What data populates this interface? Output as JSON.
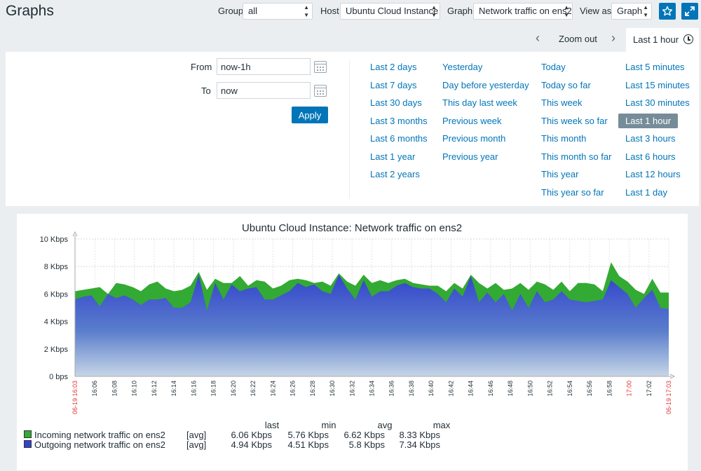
{
  "page": {
    "title": "Graphs"
  },
  "filters": {
    "group_label": "Group",
    "group_value": "all",
    "host_label": "Host",
    "host_value": "Ubuntu Cloud Instance",
    "graph_label": "Graph",
    "graph_value": "Network traffic on ens2",
    "view_label": "View as",
    "view_value": "Graph"
  },
  "header_icons": [
    "star-icon",
    "fullscreen-icon"
  ],
  "time_nav": {
    "prev": "‹",
    "zoom_out": "Zoom out",
    "next": "›",
    "active_tab": "Last 1 hour"
  },
  "time_filter": {
    "from_label": "From",
    "from_value": "now-1h",
    "to_label": "To",
    "to_value": "now",
    "apply_label": "Apply",
    "quick_ranges": [
      [
        "Last 2 days",
        "Last 7 days",
        "Last 30 days",
        "Last 3 months",
        "Last 6 months",
        "Last 1 year",
        "Last 2 years"
      ],
      [
        "Yesterday",
        "Day before yesterday",
        "This day last week",
        "Previous week",
        "Previous month",
        "Previous year"
      ],
      [
        "Today",
        "Today so far",
        "This week",
        "This week so far",
        "This month",
        "This month so far",
        "This year",
        "This year so far"
      ],
      [
        "Last 5 minutes",
        "Last 15 minutes",
        "Last 30 minutes",
        "Last 1 hour",
        "Last 3 hours",
        "Last 6 hours",
        "Last 12 hours",
        "Last 1 day"
      ]
    ],
    "active_range": "Last 1 hour"
  },
  "chart_data": {
    "type": "area",
    "title": "Ubuntu Cloud Instance: Network traffic on ens2",
    "ylim": [
      0,
      10
    ],
    "y_ticks": [
      "0 bps",
      "2 Kbps",
      "4 Kbps",
      "6 Kbps",
      "8 Kbps",
      "10 Kbps"
    ],
    "x_ticks": [
      "06-19 16:03",
      "16:06",
      "16:08",
      "16:10",
      "16:12",
      "16:14",
      "16:16",
      "16:18",
      "16:20",
      "16:22",
      "16:24",
      "16:26",
      "16:28",
      "16:30",
      "16:32",
      "16:34",
      "16:36",
      "16:38",
      "16:40",
      "16:42",
      "16:44",
      "16:46",
      "16:48",
      "16:50",
      "16:52",
      "16:54",
      "16:56",
      "16:58",
      "17:00",
      "17:02",
      "06-19 17:03"
    ],
    "x_ticks_red": [
      "06-19 16:03",
      "17:00",
      "06-19 17:03"
    ],
    "grid": true,
    "series": [
      {
        "name": "Incoming network traffic on ens2",
        "color": "#33aa33",
        "values": [
          6.2,
          6.3,
          6.4,
          6.5,
          6.0,
          6.8,
          6.7,
          6.5,
          6.2,
          6.7,
          6.9,
          6.4,
          6.2,
          6.3,
          6.6,
          7.6,
          6.3,
          7.1,
          6.8,
          6.8,
          7.3,
          6.6,
          7.0,
          6.9,
          6.4,
          6.6,
          7.0,
          7.1,
          7.0,
          6.8,
          6.9,
          6.6,
          7.5,
          6.9,
          6.6,
          7.4,
          6.8,
          7.0,
          6.8,
          7.0,
          7.1,
          6.8,
          6.7,
          6.6,
          6.6,
          6.2,
          6.8,
          6.4,
          7.4,
          6.8,
          6.4,
          6.8,
          6.3,
          6.4,
          6.8,
          6.3,
          6.9,
          6.7,
          6.3,
          6.9,
          6.2,
          6.8,
          6.8,
          6.7,
          6.2,
          8.3,
          7.3,
          6.9,
          6.3,
          6.0,
          7.1,
          6.1,
          6.1
        ]
      },
      {
        "name": "Outgoing network traffic on ens2",
        "color": "#3344cc",
        "values": [
          5.6,
          5.8,
          5.9,
          5.1,
          6.0,
          5.7,
          5.9,
          5.6,
          5.2,
          5.6,
          5.6,
          5.7,
          5.0,
          5.0,
          5.4,
          7.4,
          4.8,
          6.8,
          5.6,
          6.7,
          6.2,
          6.4,
          6.5,
          5.6,
          5.6,
          5.9,
          6.2,
          6.8,
          6.5,
          6.7,
          6.2,
          6.0,
          7.4,
          6.4,
          5.6,
          7.0,
          5.8,
          6.2,
          6.2,
          6.6,
          6.8,
          6.5,
          6.4,
          6.4,
          6.0,
          5.4,
          6.4,
          5.8,
          7.3,
          5.4,
          6.1,
          5.4,
          6.0,
          4.8,
          6.0,
          5.0,
          6.2,
          5.4,
          5.6,
          6.2,
          5.6,
          5.5,
          5.4,
          5.5,
          5.6,
          7.0,
          6.5,
          6.0,
          5.0,
          5.7,
          6.3,
          5.0,
          4.9
        ]
      }
    ]
  },
  "legend": {
    "headers": [
      "last",
      "min",
      "avg",
      "max"
    ],
    "rows": [
      {
        "name": "Incoming network traffic on ens2",
        "fn": "[avg]",
        "last": "6.06 Kbps",
        "min": "5.76 Kbps",
        "avg": "6.62 Kbps",
        "max": "8.33 Kbps",
        "color": "#33aa33"
      },
      {
        "name": "Outgoing network traffic on ens2",
        "fn": "[avg]",
        "last": "4.94 Kbps",
        "min": "4.51 Kbps",
        "avg": "5.8 Kbps",
        "max": "7.34 Kbps",
        "color": "#3344cc"
      }
    ]
  }
}
